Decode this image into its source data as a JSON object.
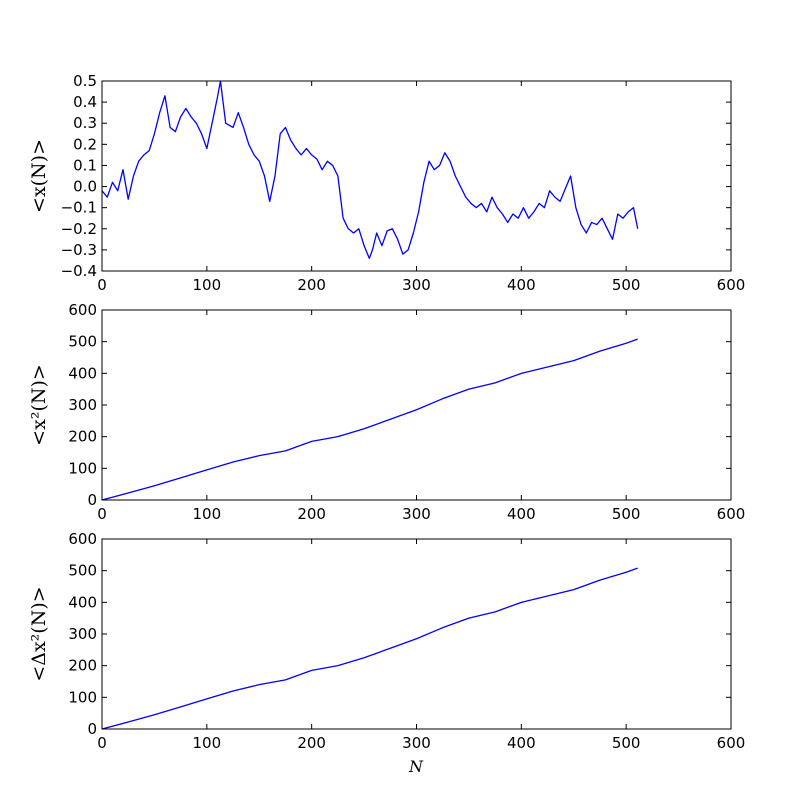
{
  "chart_data": [
    {
      "type": "line",
      "title": "",
      "xlabel": "",
      "ylabel": "<x(N)>",
      "xlim": [
        0,
        600
      ],
      "ylim": [
        -0.4,
        0.5
      ],
      "xticks": [
        "0",
        "100",
        "200",
        "300",
        "400",
        "500",
        "600"
      ],
      "yticks": [
        "−0.4",
        "−0.3",
        "−0.2",
        "−0.1",
        "0.0",
        "0.1",
        "0.2",
        "0.3",
        "0.4",
        "0.5"
      ],
      "line_color": "#0000ff",
      "grid": false,
      "x": [
        0,
        5,
        10,
        15,
        20,
        25,
        30,
        35,
        40,
        45,
        50,
        55,
        60,
        65,
        70,
        75,
        80,
        85,
        90,
        95,
        100,
        105,
        110,
        113,
        118,
        125,
        130,
        135,
        140,
        145,
        150,
        155,
        160,
        165,
        170,
        175,
        180,
        185,
        190,
        195,
        200,
        205,
        210,
        215,
        220,
        225,
        230,
        235,
        240,
        245,
        250,
        255,
        258,
        262,
        267,
        272,
        277,
        282,
        287,
        292,
        297,
        302,
        307,
        312,
        317,
        322,
        327,
        332,
        337,
        342,
        347,
        352,
        357,
        362,
        367,
        372,
        377,
        382,
        387,
        392,
        397,
        402,
        407,
        412,
        417,
        422,
        427,
        432,
        437,
        442,
        447,
        452,
        457,
        462,
        467,
        472,
        477,
        482,
        487,
        492,
        497,
        502,
        507,
        511
      ],
      "y": [
        -0.02,
        -0.05,
        0.02,
        -0.02,
        0.08,
        -0.06,
        0.05,
        0.12,
        0.15,
        0.17,
        0.25,
        0.35,
        0.43,
        0.28,
        0.26,
        0.33,
        0.37,
        0.33,
        0.3,
        0.25,
        0.18,
        0.3,
        0.42,
        0.5,
        0.3,
        0.28,
        0.35,
        0.28,
        0.2,
        0.15,
        0.12,
        0.05,
        -0.07,
        0.05,
        0.25,
        0.28,
        0.22,
        0.18,
        0.15,
        0.18,
        0.15,
        0.13,
        0.08,
        0.12,
        0.1,
        0.05,
        -0.15,
        -0.2,
        -0.22,
        -0.2,
        -0.28,
        -0.34,
        -0.3,
        -0.22,
        -0.28,
        -0.21,
        -0.2,
        -0.25,
        -0.32,
        -0.3,
        -0.22,
        -0.12,
        0.02,
        0.12,
        0.08,
        0.1,
        0.16,
        0.12,
        0.05,
        0.0,
        -0.05,
        -0.08,
        -0.1,
        -0.08,
        -0.12,
        -0.05,
        -0.1,
        -0.13,
        -0.17,
        -0.13,
        -0.15,
        -0.1,
        -0.15,
        -0.12,
        -0.08,
        -0.1,
        -0.02,
        -0.05,
        -0.07,
        -0.01,
        0.05,
        -0.1,
        -0.18,
        -0.22,
        -0.17,
        -0.18,
        -0.15,
        -0.2,
        -0.25,
        -0.13,
        -0.15,
        -0.12,
        -0.1,
        -0.2
      ]
    },
    {
      "type": "line",
      "title": "",
      "xlabel": "",
      "ylabel": "<x²(N)>",
      "xlim": [
        0,
        600
      ],
      "ylim": [
        0,
        600
      ],
      "xticks": [
        "0",
        "100",
        "200",
        "300",
        "400",
        "500",
        "600"
      ],
      "yticks": [
        "0",
        "100",
        "200",
        "300",
        "400",
        "500",
        "600"
      ],
      "line_color": "#0000ff",
      "grid": false,
      "x": [
        0,
        25,
        50,
        75,
        100,
        125,
        150,
        175,
        200,
        225,
        250,
        275,
        300,
        325,
        350,
        375,
        400,
        425,
        450,
        475,
        500,
        511
      ],
      "y": [
        0,
        22,
        45,
        70,
        95,
        120,
        140,
        155,
        185,
        200,
        225,
        255,
        285,
        320,
        350,
        370,
        400,
        420,
        440,
        470,
        495,
        508
      ]
    },
    {
      "type": "line",
      "title": "",
      "xlabel": "N",
      "ylabel": "<Δx²(N)>",
      "xlim": [
        0,
        600
      ],
      "ylim": [
        0,
        600
      ],
      "xticks": [
        "0",
        "100",
        "200",
        "300",
        "400",
        "500",
        "600"
      ],
      "yticks": [
        "0",
        "100",
        "200",
        "300",
        "400",
        "500",
        "600"
      ],
      "line_color": "#0000ff",
      "grid": false,
      "x": [
        0,
        25,
        50,
        75,
        100,
        125,
        150,
        175,
        200,
        225,
        250,
        275,
        300,
        325,
        350,
        375,
        400,
        425,
        450,
        475,
        500,
        511
      ],
      "y": [
        0,
        22,
        45,
        70,
        95,
        120,
        140,
        155,
        185,
        200,
        225,
        255,
        285,
        320,
        350,
        370,
        400,
        420,
        440,
        470,
        495,
        508
      ]
    }
  ]
}
